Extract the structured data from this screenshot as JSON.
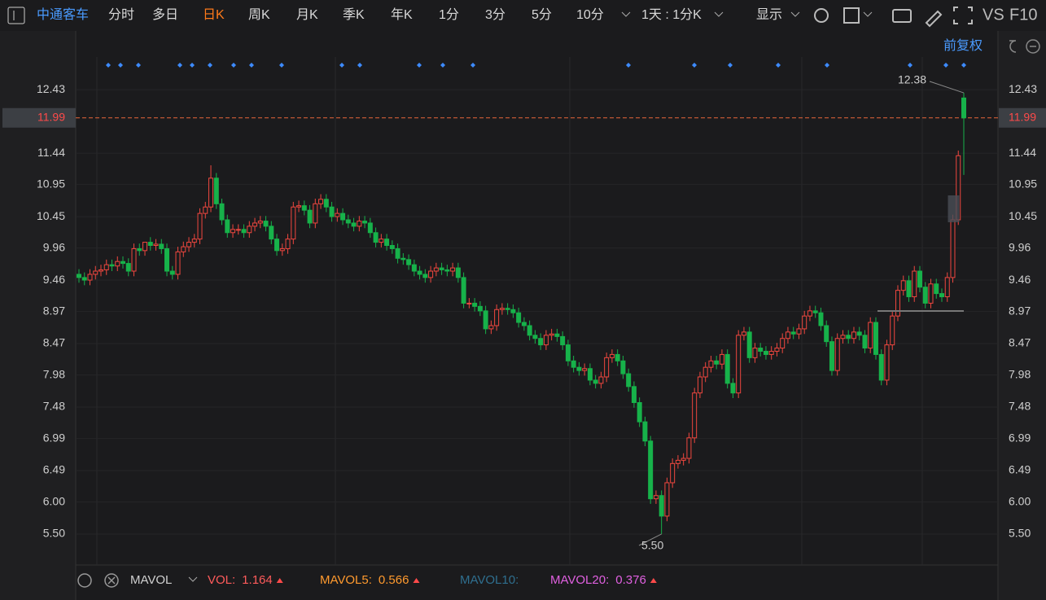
{
  "toolbar": {
    "stock": "中通客车",
    "periods": [
      "分时",
      "多日",
      "日K",
      "周K",
      "月K",
      "季K",
      "年K",
      "1分",
      "3分",
      "5分",
      "10分"
    ],
    "active": "日K",
    "interval": "1天 : 1分K",
    "display": "显示",
    "vs": "VS",
    "f10": "F10",
    "adjust": "前复权"
  },
  "chart_data": {
    "type": "candlestick",
    "up_color": "#f0473f",
    "down_color": "#17b24a",
    "ylim": [
      5.03,
      13.32
    ],
    "yticks": [
      12.43,
      11.44,
      10.95,
      10.45,
      9.96,
      9.46,
      8.97,
      8.47,
      7.98,
      7.48,
      6.99,
      6.49,
      {
        "value": 6.0,
        "label": "6.00"
      },
      {
        "value": 5.5,
        "label": "5.50"
      }
    ],
    "last_price": {
      "value": 11.99,
      "label": "11.99"
    },
    "annotations": [
      "12.38",
      "5.50"
    ],
    "open": [
      9.55,
      9.5,
      9.46,
      9.55,
      9.6,
      9.62,
      9.7,
      9.68,
      9.75,
      9.72,
      9.6,
      9.95,
      9.92,
      10.05,
      10.0,
      10.02,
      9.95,
      9.6,
      9.55,
      9.9,
      9.98,
      10.05,
      10.1,
      10.5,
      10.6,
      11.05,
      10.65,
      10.4,
      10.2,
      10.25,
      10.25,
      10.2,
      10.3,
      10.35,
      10.38,
      10.3,
      10.1,
      9.92,
      9.95,
      10.1,
      10.6,
      10.62,
      10.55,
      10.35,
      10.65,
      10.72,
      10.6,
      10.45,
      10.5,
      10.4,
      10.35,
      10.3,
      10.38,
      10.35,
      10.2,
      10.05,
      10.1,
      10.0,
      9.95,
      9.8,
      9.78,
      9.7,
      9.6,
      9.55,
      9.5,
      9.6,
      9.65,
      9.62,
      9.6,
      9.65,
      9.5,
      9.1,
      9.1,
      9.05,
      8.98,
      8.7,
      8.75,
      9.0,
      9.02,
      9.0,
      8.95,
      8.8,
      8.75,
      8.6,
      8.55,
      8.45,
      8.6,
      8.62,
      8.58,
      8.45,
      8.2,
      8.1,
      8.05,
      8.08,
      7.9,
      7.85,
      7.95,
      8.25,
      8.3,
      8.2,
      8.0,
      7.8,
      7.55,
      7.25,
      6.95,
      6.05,
      6.1,
      5.78,
      6.3,
      6.6,
      6.65,
      6.68,
      7.0,
      7.7,
      7.95,
      8.1,
      8.2,
      8.15,
      8.3,
      7.85,
      7.7,
      8.6,
      8.65,
      8.25,
      8.4,
      8.35,
      8.3,
      8.35,
      8.4,
      8.55,
      8.65,
      8.62,
      8.7,
      8.9,
      8.98,
      8.95,
      8.75,
      8.5,
      8.05,
      8.55,
      8.6,
      8.55,
      8.65,
      8.6,
      8.4,
      8.8,
      8.3,
      7.9,
      8.45,
      8.9,
      9.3,
      9.45,
      9.2,
      9.6,
      9.35,
      9.1,
      9.4,
      9.25,
      9.2,
      9.5,
      10.4,
      12.3
    ],
    "high": [
      9.63,
      9.58,
      9.63,
      9.68,
      9.7,
      9.78,
      9.78,
      9.83,
      9.83,
      9.8,
      10.03,
      10.03,
      10.0,
      10.13,
      10.1,
      10.1,
      10.03,
      9.68,
      9.98,
      10.06,
      10.13,
      10.18,
      10.58,
      10.68,
      11.25,
      11.13,
      10.73,
      10.48,
      10.33,
      10.33,
      10.33,
      10.38,
      10.43,
      10.46,
      10.46,
      10.38,
      10.18,
      10.03,
      10.18,
      10.68,
      10.7,
      10.7,
      10.63,
      10.73,
      10.8,
      10.8,
      10.68,
      10.58,
      10.58,
      10.48,
      10.43,
      10.46,
      10.46,
      10.43,
      10.28,
      10.18,
      10.18,
      10.08,
      10.03,
      9.88,
      9.86,
      9.78,
      9.68,
      9.63,
      9.68,
      9.73,
      9.73,
      9.7,
      9.73,
      9.73,
      9.58,
      9.18,
      9.18,
      9.13,
      9.06,
      8.83,
      9.08,
      9.1,
      9.1,
      9.08,
      9.03,
      8.88,
      8.83,
      8.68,
      8.63,
      8.68,
      8.7,
      8.7,
      8.66,
      8.53,
      8.28,
      8.18,
      8.16,
      8.16,
      7.98,
      8.03,
      8.33,
      8.38,
      8.38,
      8.28,
      8.08,
      7.88,
      7.63,
      7.33,
      7.03,
      6.18,
      6.18,
      6.38,
      6.68,
      6.73,
      6.76,
      7.08,
      7.78,
      8.03,
      8.18,
      8.28,
      8.28,
      8.38,
      8.38,
      7.93,
      8.68,
      8.73,
      8.73,
      8.48,
      8.48,
      8.43,
      8.43,
      8.48,
      8.63,
      8.73,
      8.73,
      8.78,
      8.98,
      9.06,
      9.06,
      9.03,
      8.83,
      8.58,
      8.63,
      8.68,
      8.68,
      8.73,
      8.73,
      8.68,
      8.88,
      8.88,
      8.38,
      8.53,
      8.98,
      9.38,
      9.53,
      9.53,
      9.68,
      9.68,
      9.43,
      9.48,
      9.48,
      9.33,
      9.58,
      10.48,
      11.48,
      12.38
    ],
    "low": [
      9.42,
      9.38,
      9.38,
      9.47,
      9.52,
      9.54,
      9.6,
      9.6,
      9.64,
      9.52,
      9.52,
      9.84,
      9.84,
      9.92,
      9.92,
      9.87,
      9.52,
      9.47,
      9.47,
      9.82,
      9.9,
      9.97,
      10.02,
      10.42,
      10.52,
      10.57,
      10.32,
      10.12,
      10.12,
      10.17,
      10.12,
      10.12,
      10.22,
      10.27,
      10.22,
      10.02,
      9.84,
      9.84,
      9.87,
      10.02,
      10.52,
      10.47,
      10.27,
      10.27,
      10.57,
      10.52,
      10.37,
      10.37,
      10.32,
      10.27,
      10.22,
      10.22,
      10.27,
      10.12,
      9.97,
      9.97,
      9.92,
      9.87,
      9.72,
      9.7,
      9.62,
      9.52,
      9.47,
      9.42,
      9.42,
      9.52,
      9.54,
      9.52,
      9.52,
      9.42,
      9.02,
      9.02,
      8.97,
      8.9,
      8.62,
      8.62,
      8.67,
      8.92,
      8.92,
      8.87,
      8.72,
      8.67,
      8.52,
      8.47,
      8.37,
      8.37,
      8.52,
      8.5,
      8.37,
      8.12,
      8.02,
      7.97,
      7.97,
      7.82,
      7.77,
      7.77,
      7.87,
      8.17,
      8.12,
      7.92,
      7.72,
      7.47,
      7.17,
      6.87,
      5.97,
      5.97,
      5.5,
      5.7,
      6.22,
      6.52,
      6.57,
      6.6,
      6.92,
      7.62,
      7.87,
      8.02,
      8.07,
      8.07,
      7.77,
      7.62,
      7.62,
      8.52,
      8.17,
      8.17,
      8.27,
      8.22,
      8.22,
      8.27,
      8.32,
      8.47,
      8.54,
      8.54,
      8.62,
      8.82,
      8.87,
      8.67,
      8.42,
      7.97,
      7.97,
      8.47,
      8.47,
      8.47,
      8.52,
      8.32,
      8.32,
      8.22,
      7.82,
      7.82,
      8.37,
      8.82,
      9.22,
      9.12,
      9.12,
      9.27,
      9.02,
      9.02,
      9.17,
      9.12,
      9.12,
      9.42,
      10.32,
      11.1
    ],
    "close": [
      9.5,
      9.46,
      9.55,
      9.6,
      9.62,
      9.7,
      9.68,
      9.75,
      9.72,
      9.6,
      9.95,
      9.92,
      10.05,
      10.0,
      10.02,
      9.95,
      9.6,
      9.55,
      9.9,
      9.98,
      10.05,
      10.1,
      10.5,
      10.6,
      11.05,
      10.65,
      10.4,
      10.2,
      10.25,
      10.25,
      10.2,
      10.3,
      10.35,
      10.38,
      10.3,
      10.1,
      9.92,
      9.95,
      10.1,
      10.6,
      10.62,
      10.55,
      10.35,
      10.65,
      10.72,
      10.6,
      10.45,
      10.5,
      10.4,
      10.35,
      10.3,
      10.38,
      10.35,
      10.2,
      10.05,
      10.1,
      10.0,
      9.95,
      9.8,
      9.78,
      9.7,
      9.6,
      9.55,
      9.5,
      9.6,
      9.65,
      9.62,
      9.6,
      9.65,
      9.5,
      9.1,
      9.1,
      9.05,
      8.98,
      8.7,
      8.75,
      9.0,
      9.02,
      9.0,
      8.95,
      8.8,
      8.75,
      8.6,
      8.55,
      8.45,
      8.6,
      8.62,
      8.58,
      8.45,
      8.2,
      8.1,
      8.05,
      8.08,
      7.9,
      7.85,
      7.95,
      8.25,
      8.3,
      8.2,
      8.0,
      7.8,
      7.55,
      7.25,
      6.95,
      6.05,
      6.1,
      5.78,
      6.3,
      6.6,
      6.65,
      6.68,
      7.0,
      7.7,
      7.95,
      8.1,
      8.2,
      8.15,
      8.3,
      7.85,
      7.7,
      8.6,
      8.65,
      8.25,
      8.4,
      8.35,
      8.3,
      8.35,
      8.4,
      8.55,
      8.65,
      8.62,
      8.7,
      8.9,
      8.98,
      8.95,
      8.75,
      8.5,
      8.05,
      8.55,
      8.6,
      8.55,
      8.65,
      8.6,
      8.4,
      8.8,
      8.3,
      7.9,
      8.45,
      8.9,
      9.3,
      9.45,
      9.2,
      9.6,
      9.35,
      9.1,
      9.4,
      9.25,
      9.2,
      9.5,
      10.4,
      11.4,
      11.99
    ],
    "volume_panel": {
      "indicator": "MAVOL",
      "items": [
        {
          "name": "VOL:",
          "value": "1.164",
          "color": "#ff5b5b"
        },
        {
          "name": "MAVOL5:",
          "value": "0.566",
          "color": "#ff9a2e"
        },
        {
          "name": "MAVOL10:",
          "value": null,
          "color": "#2f6f8f"
        },
        {
          "name": "MAVOL20:",
          "value": "0.376",
          "color": "#e060e0"
        }
      ]
    }
  }
}
